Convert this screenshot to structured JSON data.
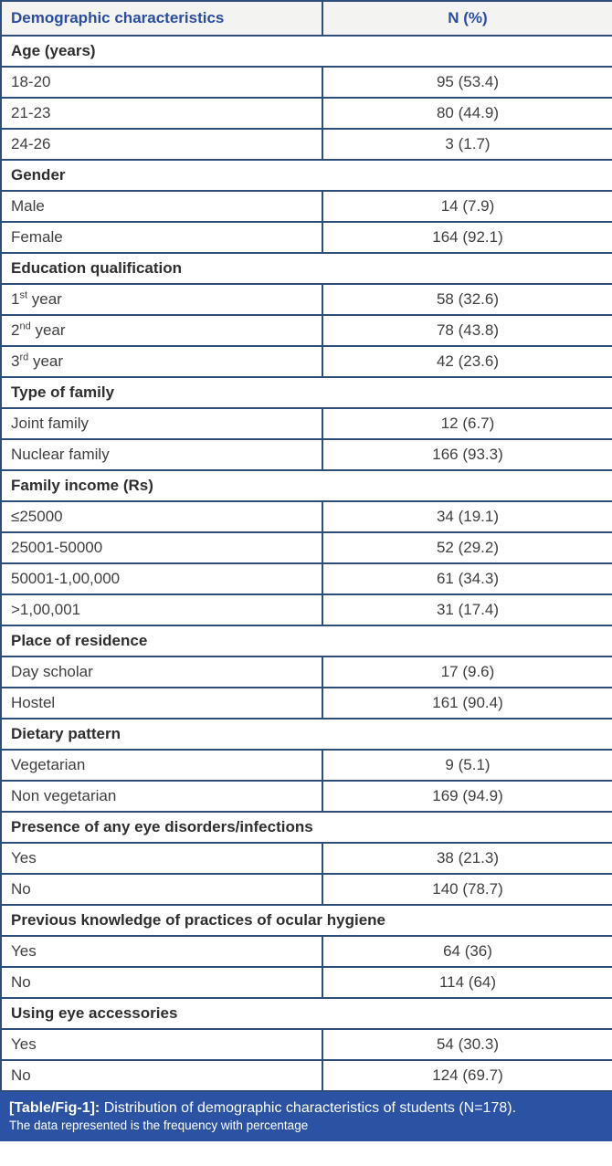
{
  "table": {
    "header": {
      "col1": "Demographic characteristics",
      "col2": "N (%)"
    },
    "sections": [
      {
        "title": "Age (years)",
        "rows": [
          {
            "label": "18-20",
            "value": "95 (53.4)"
          },
          {
            "label": "21-23",
            "value": "80 (44.9)"
          },
          {
            "label": "24-26",
            "value": "3 (1.7)"
          }
        ]
      },
      {
        "title": "Gender",
        "rows": [
          {
            "label": "Male",
            "value": "14 (7.9)"
          },
          {
            "label": "Female",
            "value": "164 (92.1)"
          }
        ]
      },
      {
        "title": "Education qualification",
        "rows": [
          {
            "num": "1",
            "sup": "st",
            "rest": " year",
            "value": "58 (32.6)"
          },
          {
            "num": "2",
            "sup": "nd",
            "rest": " year",
            "value": "78 (43.8)"
          },
          {
            "num": "3",
            "sup": "rd",
            "rest": " year",
            "value": "42 (23.6)"
          }
        ]
      },
      {
        "title": "Type of family",
        "rows": [
          {
            "label": "Joint family",
            "value": "12 (6.7)"
          },
          {
            "label": "Nuclear family",
            "value": "166 (93.3)"
          }
        ]
      },
      {
        "title": "Family income (Rs)",
        "rows": [
          {
            "label": "≤25000",
            "value": "34 (19.1)"
          },
          {
            "label": "25001-50000",
            "value": "52 (29.2)"
          },
          {
            "label": "50001-1,00,000",
            "value": "61 (34.3)"
          },
          {
            "label": ">1,00,001",
            "value": "31 (17.4)"
          }
        ]
      },
      {
        "title": "Place of residence",
        "rows": [
          {
            "label": "Day scholar",
            "value": "17 (9.6)"
          },
          {
            "label": "Hostel",
            "value": "161 (90.4)"
          }
        ]
      },
      {
        "title": "Dietary pattern",
        "rows": [
          {
            "label": "Vegetarian",
            "value": "9 (5.1)"
          },
          {
            "label": "Non vegetarian",
            "value": "169 (94.9)"
          }
        ]
      },
      {
        "title": "Presence of any eye disorders/infections",
        "rows": [
          {
            "label": "Yes",
            "value": "38 (21.3)"
          },
          {
            "label": "No",
            "value": "140 (78.7)"
          }
        ]
      },
      {
        "title": "Previous knowledge of practices of ocular hygiene",
        "rows": [
          {
            "label": "Yes",
            "value": "64 (36)"
          },
          {
            "label": "No",
            "value": "114 (64)"
          }
        ]
      },
      {
        "title": "Using eye accessories",
        "rows": [
          {
            "label": "Yes",
            "value": "54 (30.3)"
          },
          {
            "label": "No",
            "value": "124 (69.7)"
          }
        ]
      }
    ],
    "caption": {
      "tag": "[Table/Fig-1]:",
      "text": "Distribution of demographic characteristics of students (N=178).",
      "note": "The data represented is the frequency with percentage"
    },
    "colors": {
      "border_navy": "#2e4d7b",
      "header_text_blue": "#2b4da0",
      "caption_background": "#2b52a3",
      "header_row_background": "#f3f3f2",
      "body_text": "#3f3f3f"
    }
  }
}
